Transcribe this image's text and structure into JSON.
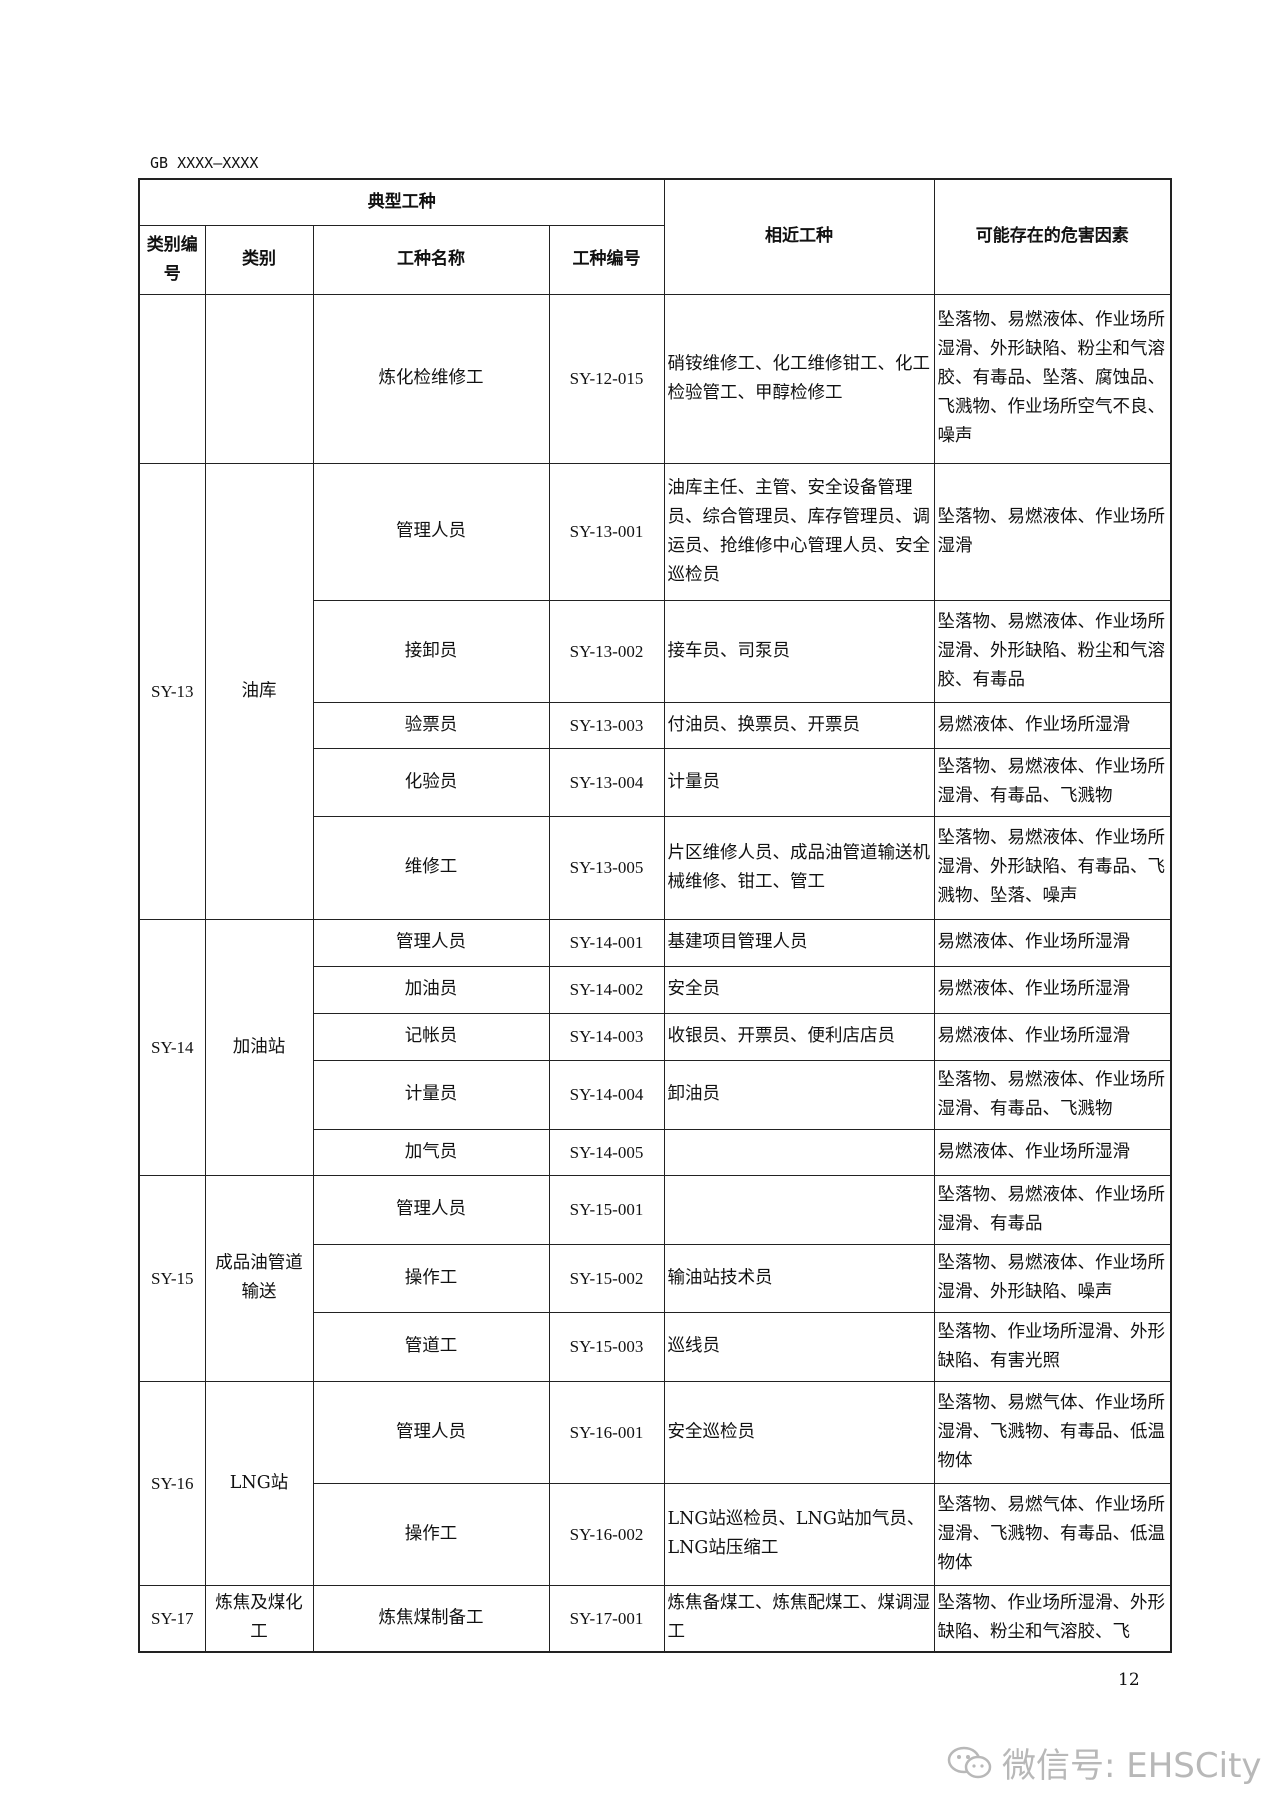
{
  "header": {
    "standard_code": "GB XXXX—XXXX"
  },
  "table": {
    "headers": {
      "typical_group": "典型工种",
      "category_code": "类别编号",
      "category": "类别",
      "job_name": "工种名称",
      "job_code": "工种编号",
      "similar_jobs": "相近工种",
      "hazards": "可能存在的危害因素"
    },
    "groups": [
      {
        "code": "",
        "category": "",
        "rows": [
          {
            "name": "炼化检维修工",
            "code": "SY-12-015",
            "similar": "硝铵维修工、化工维修钳工、化工检验管工、甲醇检修工",
            "hazards": "坠落物、易燃液体、作业场所湿滑、外形缺陷、粉尘和气溶胶、有毒品、坠落、腐蚀品、飞溅物、作业场所空气不良、噪声"
          }
        ]
      },
      {
        "code": "SY-13",
        "category": "油库",
        "rows": [
          {
            "name": "管理人员",
            "code": "SY-13-001",
            "similar": "油库主任、主管、安全设备管理员、综合管理员、库存管理员、调运员、抢维修中心管理人员、安全巡检员",
            "hazards": "坠落物、易燃液体、作业场所湿滑"
          },
          {
            "name": "接卸员",
            "code": "SY-13-002",
            "similar": "接车员、司泵员",
            "hazards": "坠落物、易燃液体、作业场所湿滑、外形缺陷、粉尘和气溶胶、有毒品"
          },
          {
            "name": "验票员",
            "code": "SY-13-003",
            "similar": "付油员、换票员、开票员",
            "hazards": "易燃液体、作业场所湿滑"
          },
          {
            "name": "化验员",
            "code": "SY-13-004",
            "similar": "计量员",
            "hazards": "坠落物、易燃液体、作业场所湿滑、有毒品、飞溅物"
          },
          {
            "name": "维修工",
            "code": "SY-13-005",
            "similar": "片区维修人员、成品油管道输送机械维修、钳工、管工",
            "hazards": "坠落物、易燃液体、作业场所湿滑、外形缺陷、有毒品、飞溅物、坠落、噪声"
          }
        ]
      },
      {
        "code": "SY-14",
        "category": "加油站",
        "rows": [
          {
            "name": "管理人员",
            "code": "SY-14-001",
            "similar": "基建项目管理人员",
            "hazards": "易燃液体、作业场所湿滑"
          },
          {
            "name": "加油员",
            "code": "SY-14-002",
            "similar": "安全员",
            "hazards": "易燃液体、作业场所湿滑"
          },
          {
            "name": "记帐员",
            "code": "SY-14-003",
            "similar": "收银员、开票员、便利店店员",
            "hazards": "易燃液体、作业场所湿滑"
          },
          {
            "name": "计量员",
            "code": "SY-14-004",
            "similar": "卸油员",
            "hazards": "坠落物、易燃液体、作业场所湿滑、有毒品、飞溅物"
          },
          {
            "name": "加气员",
            "code": "SY-14-005",
            "similar": "",
            "hazards": "易燃液体、作业场所湿滑"
          }
        ]
      },
      {
        "code": "SY-15",
        "category": "成品油管道输送",
        "rows": [
          {
            "name": "管理人员",
            "code": "SY-15-001",
            "similar": "",
            "hazards": "坠落物、易燃液体、作业场所湿滑、有毒品"
          },
          {
            "name": "操作工",
            "code": "SY-15-002",
            "similar": "输油站技术员",
            "hazards": "坠落物、易燃液体、作业场所湿滑、外形缺陷、噪声"
          },
          {
            "name": "管道工",
            "code": "SY-15-003",
            "similar": "巡线员",
            "hazards": "坠落物、作业场所湿滑、外形缺陷、有害光照"
          }
        ]
      },
      {
        "code": "SY-16",
        "category": "LNG站",
        "rows": [
          {
            "name": "管理人员",
            "code": "SY-16-001",
            "similar": "安全巡检员",
            "hazards": "坠落物、易燃气体、作业场所湿滑、飞溅物、有毒品、低温物体"
          },
          {
            "name": "操作工",
            "code": "SY-16-002",
            "similar": "LNG站巡检员、LNG站加气员、LNG站压缩工",
            "hazards": "坠落物、易燃气体、作业场所湿滑、飞溅物、有毒品、低温物体"
          }
        ]
      },
      {
        "code": "SY-17",
        "category": "炼焦及煤化工",
        "rows": [
          {
            "name": "炼焦煤制备工",
            "code": "SY-17-001",
            "similar": "炼焦备煤工、炼焦配煤工、煤调湿工",
            "hazards": "坠落物、作业场所湿滑、外形缺陷、粉尘和气溶胶、飞"
          }
        ]
      }
    ]
  },
  "footer": {
    "page_number": "12",
    "watermark": "微信号: EHSCity",
    "watermark_icon": "wechat-icon"
  }
}
